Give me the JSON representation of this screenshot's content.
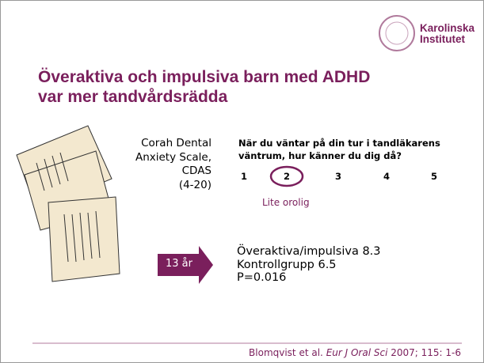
{
  "logo": {
    "line1": "Karolinska",
    "line2": "Institutet"
  },
  "title": {
    "line1": "Överaktiva och impulsiva barn med ADHD",
    "line2": "var mer tandvårdsrädda"
  },
  "scale": {
    "lines": [
      "Corah Dental",
      "Anxiety Scale,",
      "CDAS",
      "(4-20)"
    ]
  },
  "question": {
    "lines": [
      "När du väntar på din tur i tandläkarens",
      "väntrum, hur känner du dig då?"
    ],
    "options": [
      "1",
      "2",
      "3",
      "4",
      "5"
    ],
    "selected_label": "Lite orolig"
  },
  "age_arrow": "13 år",
  "results": [
    "Överaktiva/impulsiva 8.3",
    "Kontrollgrupp 6.5",
    "P=0.016"
  ],
  "citation": {
    "authors": "Blomqvist et al.",
    "journal": "Eur J Oral Sci",
    "details": "2007; 115: 1-6"
  }
}
